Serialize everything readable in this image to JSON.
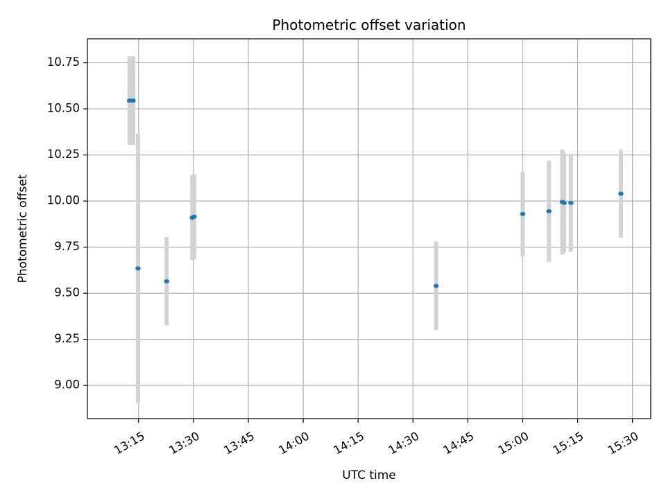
{
  "chart_data": {
    "type": "scatter",
    "title": "Photometric offset variation",
    "xlabel": "UTC time",
    "ylabel": "Photometric offset",
    "x_unit": "time",
    "xlim": [
      "13:01",
      "15:35"
    ],
    "ylim": [
      8.82,
      10.88
    ],
    "x_ticks": [
      "13:15",
      "13:30",
      "13:45",
      "14:00",
      "14:15",
      "14:30",
      "14:45",
      "15:00",
      "15:15",
      "15:30"
    ],
    "y_ticks": [
      "9.00",
      "9.25",
      "9.50",
      "9.75",
      "10.00",
      "10.25",
      "10.50",
      "10.75"
    ],
    "grid": true,
    "colors": {
      "marker": "#1f77b4",
      "errorbar": "#d3d3d3",
      "grid": "#b0b0b0"
    },
    "points": [
      {
        "time": "13:12:30",
        "y": 10.545,
        "yerr": 0.24
      },
      {
        "time": "13:13:10",
        "y": 10.545,
        "yerr": 0.24
      },
      {
        "time": "13:13:30",
        "y": 10.545,
        "yerr": 0.24
      },
      {
        "time": "13:14:50",
        "y": 9.635,
        "yerr": 0.73
      },
      {
        "time": "13:22:40",
        "y": 9.565,
        "yerr": 0.24
      },
      {
        "time": "13:29:40",
        "y": 9.91,
        "yerr": 0.23
      },
      {
        "time": "13:30:10",
        "y": 9.915,
        "yerr": 0.23
      },
      {
        "time": "14:36:20",
        "y": 9.54,
        "yerr": 0.24
      },
      {
        "time": "15:00:00",
        "y": 9.93,
        "yerr": 0.23
      },
      {
        "time": "15:07:10",
        "y": 9.945,
        "yerr": 0.275
      },
      {
        "time": "15:10:50",
        "y": 9.995,
        "yerr": 0.285
      },
      {
        "time": "15:11:20",
        "y": 9.99,
        "yerr": 0.27
      },
      {
        "time": "15:13:10",
        "y": 9.99,
        "yerr": 0.265
      },
      {
        "time": "15:26:50",
        "y": 10.04,
        "yerr": 0.24
      }
    ]
  }
}
